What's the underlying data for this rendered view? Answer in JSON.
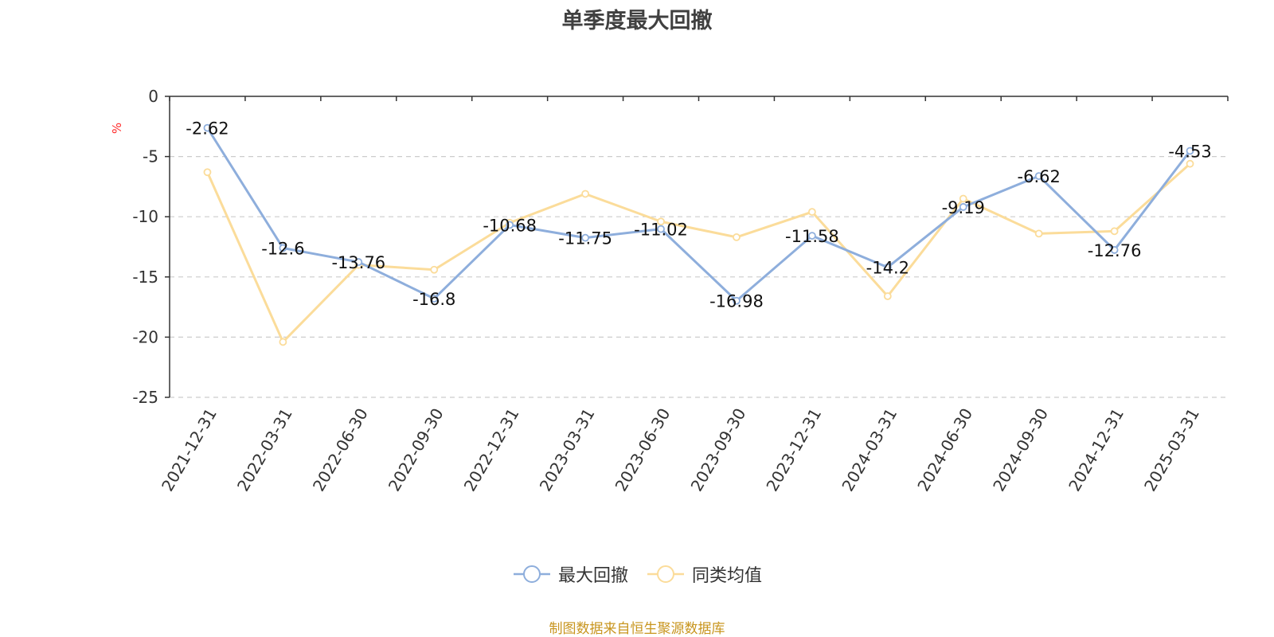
{
  "chart_data": {
    "type": "line",
    "title": "单季度最大回撤",
    "ylabel": "%",
    "ylim": [
      -25,
      0
    ],
    "yticks": [
      0,
      -5,
      -10,
      -15,
      -20,
      -25
    ],
    "ytick_labels": [
      "0",
      "-5",
      "-10",
      "-15",
      "-20",
      "-25"
    ],
    "grid": "horizontal dashed",
    "legend_position": "bottom-center",
    "categories": [
      "2021-12-31",
      "2022-03-31",
      "2022-06-30",
      "2022-09-30",
      "2022-12-31",
      "2023-03-31",
      "2023-06-30",
      "2023-09-30",
      "2023-12-31",
      "2024-03-31",
      "2024-06-30",
      "2024-09-30",
      "2024-12-31",
      "2025-03-31"
    ],
    "series": [
      {
        "name": "最大回撤",
        "color": "#8eaedc",
        "show_labels": true,
        "values": [
          -2.62,
          -12.6,
          -13.76,
          -16.8,
          -10.68,
          -11.75,
          -11.02,
          -16.98,
          -11.58,
          -14.2,
          -9.19,
          -6.62,
          -12.76,
          -4.53
        ],
        "labels": [
          "-2.62",
          "-12.6",
          "-13.76",
          "-16.8",
          "-10.68",
          "-11.75",
          "-11.02",
          "-16.98",
          "-11.58",
          "-14.2",
          "-9.19",
          "-6.62",
          "-12.76",
          "-4.53"
        ]
      },
      {
        "name": "同类均值",
        "color": "#fbdc9a",
        "show_labels": false,
        "values": [
          -6.3,
          -20.4,
          -14.0,
          -14.4,
          -10.5,
          -8.1,
          -10.4,
          -11.7,
          -9.6,
          -16.6,
          -8.5,
          -11.4,
          -11.2,
          -5.6
        ]
      }
    ]
  },
  "footer": {
    "source": "制图数据来自恒生聚源数据库"
  }
}
